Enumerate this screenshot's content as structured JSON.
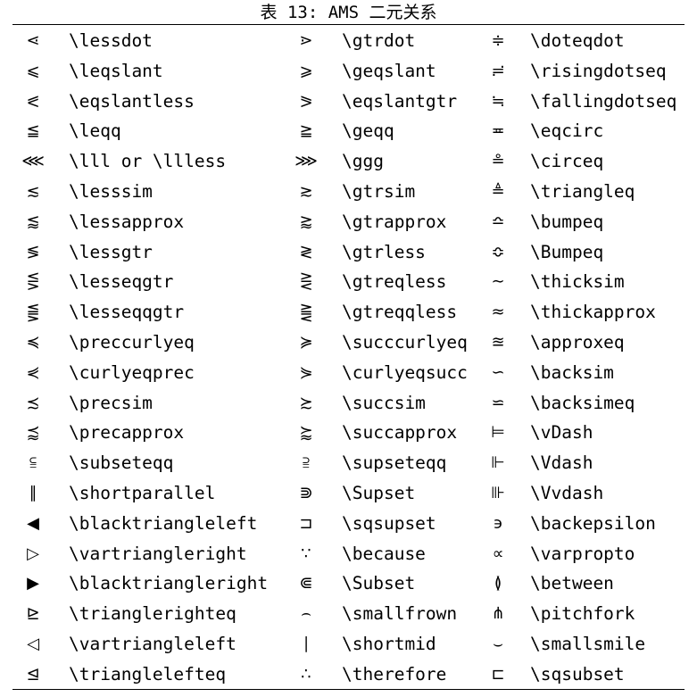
{
  "caption": "表 13: AMS 二元关系",
  "rows": [
    [
      {
        "sym": "⋖",
        "cmd": "\\lessdot"
      },
      {
        "sym": "⋗",
        "cmd": "\\gtrdot"
      },
      {
        "sym": "≑",
        "cmd": "\\doteqdot"
      }
    ],
    [
      {
        "sym": "⩽",
        "cmd": "\\leqslant"
      },
      {
        "sym": "⩾",
        "cmd": "\\geqslant"
      },
      {
        "sym": "≓",
        "cmd": "\\risingdotseq"
      }
    ],
    [
      {
        "sym": "⪕",
        "cmd": "\\eqslantless"
      },
      {
        "sym": "⪖",
        "cmd": "\\eqslantgtr"
      },
      {
        "sym": "≒",
        "cmd": "\\fallingdotseq"
      }
    ],
    [
      {
        "sym": "≦",
        "cmd": "\\leqq"
      },
      {
        "sym": "≧",
        "cmd": "\\geqq"
      },
      {
        "sym": "≖",
        "cmd": "\\eqcirc"
      }
    ],
    [
      {
        "sym": "⋘",
        "cmd": "\\lll or \\llless"
      },
      {
        "sym": "⋙",
        "cmd": "\\ggg"
      },
      {
        "sym": "≗",
        "cmd": "\\circeq"
      }
    ],
    [
      {
        "sym": "≲",
        "cmd": "\\lesssim"
      },
      {
        "sym": "≳",
        "cmd": "\\gtrsim"
      },
      {
        "sym": "≜",
        "cmd": "\\triangleq"
      }
    ],
    [
      {
        "sym": "⪅",
        "cmd": "\\lessapprox"
      },
      {
        "sym": "⪆",
        "cmd": "\\gtrapprox"
      },
      {
        "sym": "≏",
        "cmd": "\\bumpeq"
      }
    ],
    [
      {
        "sym": "≶",
        "cmd": "\\lessgtr"
      },
      {
        "sym": "≷",
        "cmd": "\\gtrless"
      },
      {
        "sym": "≎",
        "cmd": "\\Bumpeq"
      }
    ],
    [
      {
        "sym": "⋚",
        "cmd": "\\lesseqgtr"
      },
      {
        "sym": "⋛",
        "cmd": "\\gtreqless"
      },
      {
        "sym": "∼",
        "cmd": "\\thicksim"
      }
    ],
    [
      {
        "sym": "⪋",
        "cmd": "\\lesseqqgtr"
      },
      {
        "sym": "⪌",
        "cmd": "\\gtreqqless"
      },
      {
        "sym": "≈",
        "cmd": "\\thickapprox"
      }
    ],
    [
      {
        "sym": "≼",
        "cmd": "\\preccurlyeq"
      },
      {
        "sym": "≽",
        "cmd": "\\succcurlyeq"
      },
      {
        "sym": "≊",
        "cmd": "\\approxeq"
      }
    ],
    [
      {
        "sym": "⋞",
        "cmd": "\\curlyeqprec"
      },
      {
        "sym": "⋟",
        "cmd": "\\curlyeqsucc"
      },
      {
        "sym": "∽",
        "cmd": "\\backsim"
      }
    ],
    [
      {
        "sym": "≾",
        "cmd": "\\precsim"
      },
      {
        "sym": "≿",
        "cmd": "\\succsim"
      },
      {
        "sym": "⋍",
        "cmd": "\\backsimeq"
      }
    ],
    [
      {
        "sym": "⪷",
        "cmd": "\\precapprox"
      },
      {
        "sym": "⪸",
        "cmd": "\\succapprox"
      },
      {
        "sym": "⊨",
        "cmd": "\\vDash"
      }
    ],
    [
      {
        "sym": "⫅",
        "cmd": "\\subseteqq"
      },
      {
        "sym": "⫆",
        "cmd": "\\supseteqq"
      },
      {
        "sym": "⊩",
        "cmd": "\\Vdash"
      }
    ],
    [
      {
        "sym": "∥",
        "cmd": "\\shortparallel"
      },
      {
        "sym": "⋑",
        "cmd": "\\Supset"
      },
      {
        "sym": "⊪",
        "cmd": "\\Vvdash"
      }
    ],
    [
      {
        "sym": "◀",
        "cmd": "\\blacktriangleleft"
      },
      {
        "sym": "⊐",
        "cmd": "\\sqsupset"
      },
      {
        "sym": "϶",
        "cmd": "\\backepsilon"
      }
    ],
    [
      {
        "sym": "▷",
        "cmd": "\\vartriangleright"
      },
      {
        "sym": "∵",
        "cmd": "\\because"
      },
      {
        "sym": "∝",
        "cmd": "\\varpropto"
      }
    ],
    [
      {
        "sym": "▶",
        "cmd": "\\blacktriangleright"
      },
      {
        "sym": "⋐",
        "cmd": "\\Subset"
      },
      {
        "sym": "≬",
        "cmd": "\\between"
      }
    ],
    [
      {
        "sym": "⊵",
        "cmd": "\\trianglerighteq"
      },
      {
        "sym": "⌢",
        "cmd": "\\smallfrown"
      },
      {
        "sym": "⋔",
        "cmd": "\\pitchfork"
      }
    ],
    [
      {
        "sym": "◁",
        "cmd": "\\vartriangleleft"
      },
      {
        "sym": "∣",
        "cmd": "\\shortmid"
      },
      {
        "sym": "⌣",
        "cmd": "\\smallsmile"
      }
    ],
    [
      {
        "sym": "⊴",
        "cmd": "\\trianglelefteq"
      },
      {
        "sym": "∴",
        "cmd": "\\therefore"
      },
      {
        "sym": "⊏",
        "cmd": "\\sqsubset"
      }
    ]
  ]
}
